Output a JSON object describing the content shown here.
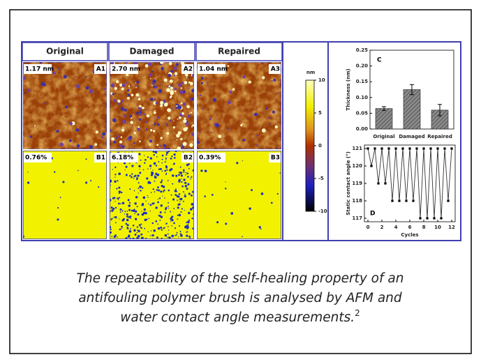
{
  "columns": [
    "Original",
    "Damaged",
    "Repaired"
  ],
  "row_a": [
    {
      "value": "1.17 nm",
      "tag": "A1"
    },
    {
      "value": "2.70 nm",
      "tag": "A2"
    },
    {
      "value": "1.04 nm",
      "tag": "A3"
    }
  ],
  "row_b": [
    {
      "value": "0.76%",
      "tag": "B1"
    },
    {
      "value": "6.18%",
      "tag": "B2"
    },
    {
      "value": "0.39%",
      "tag": "B3"
    }
  ],
  "colorbar": {
    "unit": "nm",
    "lim": [
      -10,
      10
    ],
    "ticks": [
      10,
      5,
      0,
      -5,
      -10
    ]
  },
  "chart_c": {
    "type": "bar",
    "panel": "C",
    "ylabel": "Thickness (nm)",
    "categories": [
      "Original",
      "Damaged",
      "Repaired"
    ],
    "values": [
      0.065,
      0.125,
      0.06
    ],
    "errors": [
      0.006,
      0.016,
      0.018
    ],
    "color": "#7a7a7a",
    "ylim": [
      0,
      0.25
    ],
    "yticks": [
      {
        "value": 0,
        "label": "0.00"
      },
      {
        "value": 0.05,
        "label": "0.05"
      },
      {
        "value": 0.1,
        "label": "0.10"
      },
      {
        "value": 0.15,
        "label": "0.15"
      },
      {
        "value": 0.2,
        "label": "0.20"
      },
      {
        "value": 0.25,
        "label": "0.25"
      }
    ]
  },
  "chart_d": {
    "type": "line",
    "panel": "D",
    "ylabel": "Static contact angle (°)",
    "xlabel": "Cycles",
    "x": [
      0,
      0.5,
      1,
      1.5,
      2,
      2.5,
      3,
      3.5,
      4,
      4.5,
      5,
      5.5,
      6,
      6.5,
      7,
      7.5,
      8,
      8.5,
      9,
      9.5,
      10,
      10.5,
      11,
      11.5,
      12
    ],
    "values": [
      121,
      120,
      121,
      119,
      121,
      119,
      121,
      118,
      121,
      118,
      121,
      118,
      121,
      118,
      121,
      117,
      121,
      117,
      121,
      117,
      121,
      117,
      121,
      118,
      121
    ],
    "color": "#333333",
    "xlim": [
      -0.5,
      12.5
    ],
    "ylim": [
      116.8,
      121.2
    ],
    "xticks": [
      0,
      2,
      4,
      6,
      8,
      10,
      12
    ],
    "yticks": [
      117,
      118,
      119,
      120,
      121
    ]
  },
  "caption": {
    "lines": [
      "The repeatability of the self-healing property of an",
      "antifouling polymer brush is analysed by AFM and",
      "water contact angle measurements."
    ],
    "ref": "2"
  }
}
